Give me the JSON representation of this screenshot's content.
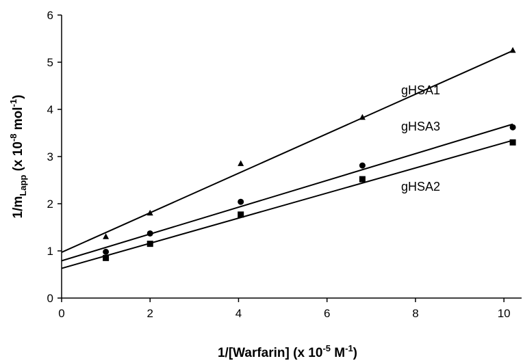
{
  "chart_data": {
    "type": "scatter",
    "title": "",
    "xlabel": {
      "main": "1/[Warfarin]  (x 10",
      "exp": "-5",
      "unit": " M",
      "unit_exp": "-1",
      "close": ")"
    },
    "ylabel": {
      "main": "1/m",
      "sub": "Lapp",
      "mid": "  (x 10",
      "exp": "-8",
      "unit": " mol",
      "unit_exp": "-1",
      "close": ")"
    },
    "xlim": [
      0,
      10.4
    ],
    "ylim": [
      0,
      6
    ],
    "x_ticks": [
      0,
      2,
      4,
      6,
      8,
      10
    ],
    "y_ticks": [
      0,
      1,
      2,
      3,
      4,
      5,
      6
    ],
    "grid": false,
    "series": [
      {
        "name": "gHSA1",
        "marker": "triangle",
        "points": [
          [
            1.0,
            1.3
          ],
          [
            2.0,
            1.8
          ],
          [
            4.05,
            2.85
          ],
          [
            6.8,
            3.83
          ],
          [
            10.2,
            5.25
          ]
        ],
        "fit": {
          "intercept": 0.97,
          "slope": 0.419
        }
      },
      {
        "name": "gHSA3",
        "marker": "circle",
        "points": [
          [
            1.0,
            0.98
          ],
          [
            2.0,
            1.37
          ],
          [
            4.05,
            2.04
          ],
          [
            6.8,
            2.81
          ],
          [
            10.2,
            3.62
          ]
        ],
        "fit": {
          "intercept": 0.79,
          "slope": 0.284
        }
      },
      {
        "name": "gHSA2",
        "marker": "square",
        "points": [
          [
            1.0,
            0.85
          ],
          [
            2.0,
            1.15
          ],
          [
            4.05,
            1.77
          ],
          [
            6.8,
            2.52
          ],
          [
            10.2,
            3.3
          ]
        ],
        "fit": {
          "intercept": 0.63,
          "slope": 0.266
        }
      }
    ]
  }
}
